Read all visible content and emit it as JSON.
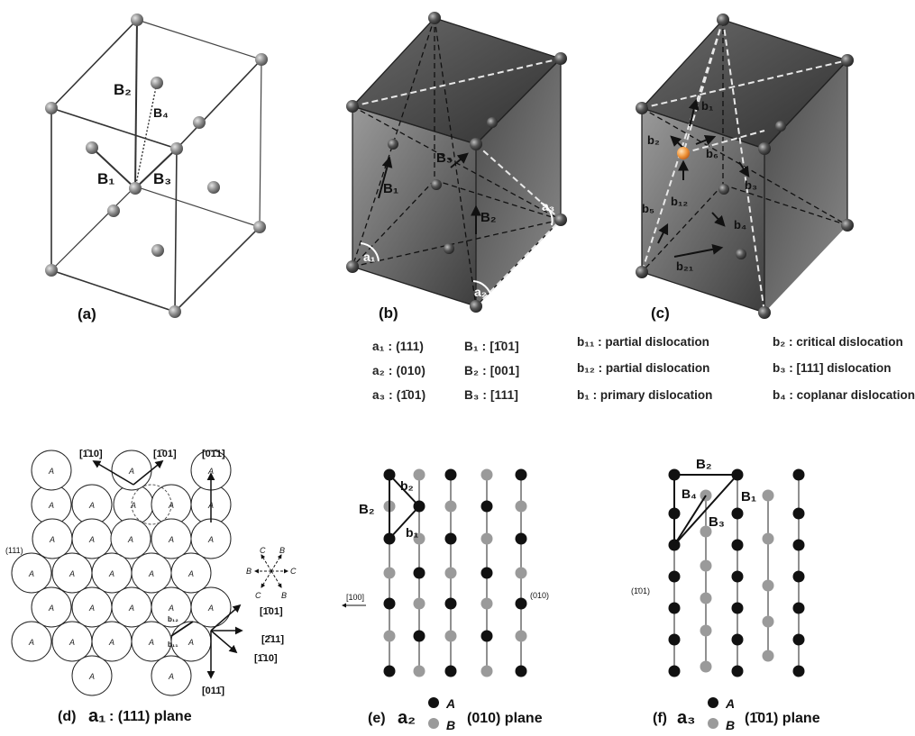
{
  "panels": {
    "a": {
      "caption": "(a)",
      "labels": {
        "B1": "B₁",
        "B2": "B₂",
        "B3": "B₃",
        "B4": "B₄"
      }
    },
    "b": {
      "caption": "(b)",
      "labels": {
        "a1": "a₁",
        "a2": "a₂",
        "a3": "a₃",
        "B1": "B₁",
        "B2": "B₂",
        "B3": "B₃"
      },
      "legend": [
        {
          "plane": "a₁ : (111)",
          "vector": "B₁ : [1̄01]"
        },
        {
          "plane": "a₂ : (010)",
          "vector": "B₂ : [001]"
        },
        {
          "plane": "a₃ : (1̄01)",
          "vector": "B₃ : [111]"
        }
      ]
    },
    "c": {
      "caption": "(c)",
      "labels": {
        "b1": "b₁",
        "b2": "b₂",
        "b3": "b₃",
        "b4": "b₄",
        "b11": "b₁₁",
        "b12": "b₁₂",
        "b21": "b₂₁",
        "b5": "b₅",
        "b6": "b₆"
      },
      "legend": [
        {
          "left": "b₁₁ : partial dislocation",
          "right": "b₂ : critical dislocation"
        },
        {
          "left": "b₁₂ : partial dislocation",
          "right": "b₃ : [111] dislocation"
        },
        {
          "left": "b₁ : primary dislocation",
          "right": "b₄ : coplanar dislocation"
        }
      ]
    },
    "d": {
      "caption_prefix": "(d)",
      "caption_plane": "a₁",
      "caption_rest": " : (111) plane",
      "atom_label": "A",
      "directions": {
        "top1": "[1̄10]",
        "top2": "[1̄01]",
        "top3": "[01̄1]",
        "r1": "[1̄01]",
        "r2": "[2̄11]",
        "r3": "[1̄10]",
        "bottom": "[011̄]"
      },
      "plane_tag": "(111)",
      "star_labels": {
        "C1": "C",
        "B1": "B",
        "B2": "B",
        "C2": "C",
        "C3": "C",
        "B3": "B"
      },
      "small": {
        "b11": "b₁₁",
        "b12": "b₁₂"
      }
    },
    "e": {
      "caption_prefix": "(e)",
      "caption_plane": "a₂",
      "caption_rest": "(010) plane",
      "legend_a": "A",
      "legend_b": "B",
      "labels": {
        "B2": "B₂",
        "b1": "b₁",
        "b2": "b₂"
      },
      "dir_left": "[100]",
      "dir_right": "(010)"
    },
    "f": {
      "caption_prefix": "(f)",
      "caption_plane": "a₃",
      "caption_rest": "(1̄01) plane",
      "legend_a": "A",
      "legend_b": "B",
      "labels": {
        "B1": "B₁",
        "B2": "B₂",
        "B3": "B₃",
        "B4": "B₄"
      },
      "dir_left": "(1̄01)"
    }
  },
  "colors": {
    "black_atom": "#111111",
    "gray_atom": "#9a9a9a",
    "cube_dark": "#3a3a3a",
    "cube_light": "#b8b8b8",
    "orange_atom": "#f0963c"
  }
}
